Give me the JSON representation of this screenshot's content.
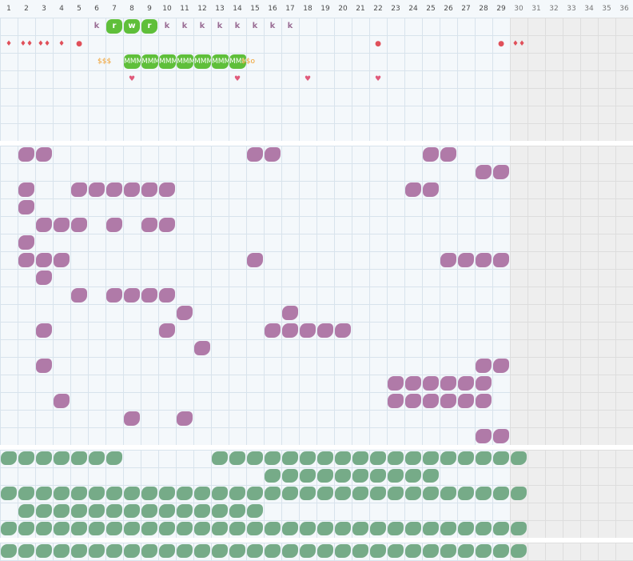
{
  "grid": {
    "column_labels": [
      "1",
      "2",
      "3",
      "4",
      "5",
      "6",
      "7",
      "8",
      "9",
      "10",
      "11",
      "12",
      "13",
      "14",
      "15",
      "16",
      "17",
      "18",
      "19",
      "20",
      "21",
      "22",
      "23",
      "24",
      "25",
      "26",
      "27",
      "28",
      "29",
      "30",
      "31",
      "32",
      "33",
      "34",
      "35",
      "36"
    ],
    "active_columns": 29,
    "colors": {
      "line": "#d8e3ec",
      "active_bg": "#f4f8fb",
      "disabled_bg": "#eeeeee",
      "purple": "#b07aa8",
      "green_block": "#5fbf3a",
      "teal_green": "#76ab88",
      "marker_red": "#e0505a",
      "marker_pink": "#e05a7a",
      "dollar_orange": "#f0a030",
      "k_mark": "#9a6e95"
    }
  },
  "top_track": {
    "row1": [
      {
        "col": 6,
        "kind": "k",
        "text": "k"
      },
      {
        "col": 7,
        "kind": "pill",
        "text": "r"
      },
      {
        "col": 8,
        "kind": "pill",
        "text": "w"
      },
      {
        "col": 9,
        "kind": "pill",
        "text": "r"
      },
      {
        "col": 10,
        "kind": "k",
        "text": "k"
      },
      {
        "col": 11,
        "kind": "k",
        "text": "k"
      },
      {
        "col": 12,
        "kind": "k",
        "text": "k"
      },
      {
        "col": 13,
        "kind": "k",
        "text": "k"
      },
      {
        "col": 14,
        "kind": "k",
        "text": "k"
      },
      {
        "col": 15,
        "kind": "k",
        "text": "k"
      },
      {
        "col": 16,
        "kind": "k",
        "text": "k"
      },
      {
        "col": 17,
        "kind": "k",
        "text": "k"
      }
    ],
    "row2": [
      {
        "col": 1,
        "symbol": "drop-single"
      },
      {
        "col": 2,
        "symbol": "drop-double"
      },
      {
        "col": 3,
        "symbol": "drop-triple"
      },
      {
        "col": 4,
        "symbol": "drop-single"
      },
      {
        "col": 5,
        "symbol": "dot"
      },
      {
        "col": 22,
        "symbol": "dot"
      },
      {
        "col": 29,
        "symbol": "dot"
      },
      {
        "col": 30,
        "symbol": "drop-double"
      }
    ],
    "row3": {
      "prefix": "$$$",
      "prefix_col": 6,
      "wavy_text": "MMM",
      "wavy_cols": [
        8,
        9,
        10,
        11,
        12,
        13,
        14
      ],
      "suffix": "$$o",
      "suffix_col": 15
    },
    "row4_hearts": [
      8,
      14,
      18,
      22
    ],
    "glyphs": {
      "heart": "♥",
      "drop": "♦",
      "dot": "●"
    }
  },
  "middle_track": {
    "rows": [
      [
        2,
        3,
        15,
        16,
        25,
        26
      ],
      [
        28,
        29
      ],
      [
        2,
        5,
        6,
        7,
        8,
        9,
        10,
        24,
        25
      ],
      [
        2
      ],
      [
        3,
        4,
        5,
        7,
        9,
        10
      ],
      [
        2
      ],
      [
        2,
        3,
        4,
        15,
        26,
        27,
        28,
        29
      ],
      [
        3
      ],
      [
        5,
        7,
        8,
        9,
        10
      ],
      [
        11,
        17
      ],
      [
        3,
        10,
        16,
        17,
        18,
        19,
        20
      ],
      [
        12
      ],
      [
        3,
        28,
        29
      ],
      [
        23,
        24,
        25,
        26,
        27,
        28
      ],
      [
        4,
        23,
        24,
        25,
        26,
        27,
        28
      ],
      [
        8,
        11
      ],
      [
        28,
        29
      ]
    ]
  },
  "bottom_track": {
    "rows": [
      {
        "start": 1,
        "end": 7,
        "start2": 13,
        "end2": 30
      },
      {
        "start": 16,
        "end": 25
      },
      {
        "start": 1,
        "end": 30
      },
      {
        "start": 2,
        "end": 15
      },
      {
        "start": 1,
        "end": 30
      }
    ]
  },
  "footer_track": {
    "rows": [
      {
        "start": 1,
        "end": 30
      }
    ]
  }
}
